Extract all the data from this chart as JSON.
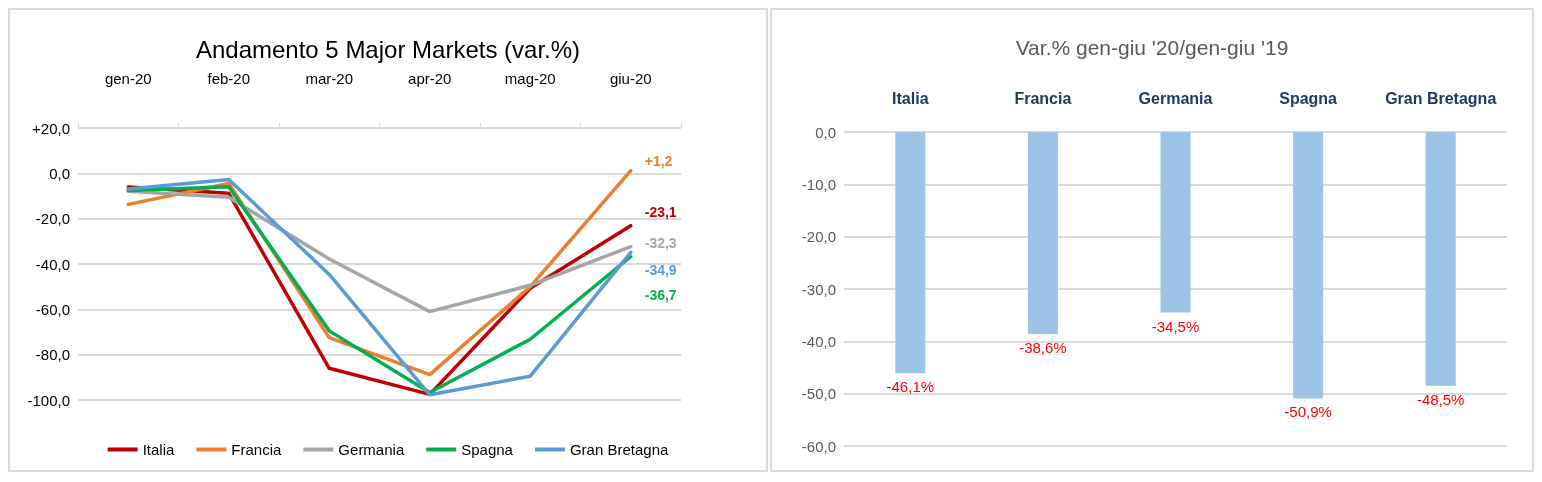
{
  "chart_data": [
    {
      "type": "line",
      "title": "Andamento 5 Major Markets (var.%)",
      "categories": [
        "gen-20",
        "feb-20",
        "mar-20",
        "apr-20",
        "mag-20",
        "giu-20"
      ],
      "series": [
        {
          "name": "Italia",
          "color": "#c00000",
          "values": [
            -6,
            -8.8,
            -86,
            -97.5,
            -50.7,
            -23.1
          ],
          "value_labels": [
            null,
            null,
            null,
            null,
            null,
            "-23,1"
          ]
        },
        {
          "name": "Francia",
          "color": "#ed7d31",
          "values": [
            -13.7,
            -4.5,
            -72.5,
            -88.8,
            -50,
            1.2
          ],
          "value_labels": [
            null,
            null,
            null,
            null,
            null,
            "+1,2"
          ]
        },
        {
          "name": "Germania",
          "color": "#a5a5a5",
          "values": [
            -7.9,
            -10.6,
            -37.8,
            -61,
            -49.4,
            -32.3
          ],
          "value_labels": [
            null,
            null,
            null,
            null,
            null,
            "-32,3"
          ]
        },
        {
          "name": "Spagna",
          "color": "#00b050",
          "values": [
            -7.6,
            -5.9,
            -69.5,
            -96.7,
            -73.2,
            -36.7
          ],
          "value_labels": [
            null,
            null,
            null,
            null,
            null,
            "-36,7"
          ]
        },
        {
          "name": "Gran Bretagna",
          "color": "#5b9bd5",
          "values": [
            -6.9,
            -2.7,
            -44.6,
            -97.7,
            -89.5,
            -34.9
          ],
          "value_labels": [
            null,
            null,
            null,
            null,
            null,
            "-34,9"
          ]
        }
      ],
      "ylim": [
        -100,
        20
      ],
      "yticks": [
        {
          "value": 20,
          "label": "+20,0"
        },
        {
          "value": 0,
          "label": "0,0"
        },
        {
          "value": -20,
          "label": "-20,0"
        },
        {
          "value": -40,
          "label": "-40,0"
        },
        {
          "value": -60,
          "label": "-60,0"
        },
        {
          "value": -80,
          "label": "-80,0"
        },
        {
          "value": -100,
          "label": "-100,0"
        }
      ],
      "grid": "y",
      "legend": "bottom",
      "marker": "none"
    },
    {
      "type": "bar",
      "title": "Var.% gen-giu '20/gen-giu '19",
      "categories": [
        "Italia",
        "Francia",
        "Germania",
        "Spagna",
        "Gran Bretagna"
      ],
      "values": [
        -46.1,
        -38.6,
        -34.5,
        -50.9,
        -48.5
      ],
      "color": "#9dc3e6",
      "value_labels": [
        "-46,1%",
        "-38,6%",
        "-34,5%",
        "-50,9%",
        "-48,5%"
      ],
      "ylim": [
        -60,
        0
      ],
      "yticks": [
        {
          "value": 0,
          "label": "0,0"
        },
        {
          "value": -10,
          "label": "-10,0"
        },
        {
          "value": -20,
          "label": "-20,0"
        },
        {
          "value": -30,
          "label": "-30,0"
        },
        {
          "value": -40,
          "label": "-40,0"
        },
        {
          "value": -50,
          "label": "-50,0"
        },
        {
          "value": -60,
          "label": "-60,0"
        }
      ],
      "grid": "y"
    }
  ]
}
